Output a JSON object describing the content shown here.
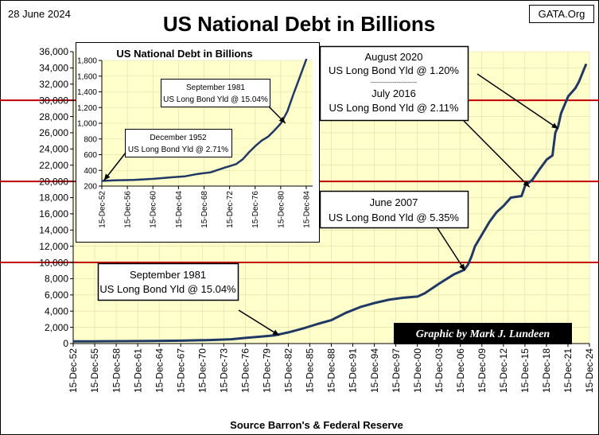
{
  "header": {
    "date": "28 June 2024",
    "site": "GATA.Org",
    "title": "US National Debt in Billions"
  },
  "footer": {
    "source": "Source Barron's & Federal Reserve",
    "credit": "Graphic by Mark J. Lundeen"
  },
  "colors": {
    "line": "#1f3864",
    "plot_bg": "#ffffcc",
    "reference_line": "#c00000",
    "credit_bg": "#000000"
  },
  "chart_data": [
    {
      "type": "line",
      "title": "US National Debt in Billions",
      "ylim": [
        0,
        36000
      ],
      "yticks": [
        0,
        2000,
        4000,
        6000,
        8000,
        10000,
        12000,
        14000,
        16000,
        18000,
        20000,
        22000,
        24000,
        26000,
        28000,
        30000,
        32000,
        34000,
        36000
      ],
      "ytick_labels": [
        "0",
        "2,000",
        "4,000",
        "6,000",
        "8,000",
        "10,000",
        "12,000",
        "14,000",
        "16,000",
        "18,000",
        "20,000",
        "22,000",
        "24,000",
        "26,000",
        "28,000",
        "30,000",
        "32,000",
        "34,000",
        "36,000"
      ],
      "xlim": [
        1952.96,
        2024.96
      ],
      "xtick_years": [
        1952.96,
        1955.96,
        1958.96,
        1961.96,
        1964.96,
        1967.96,
        1970.96,
        1973.96,
        1976.96,
        1979.96,
        1982.96,
        1985.96,
        1988.96,
        1991.96,
        1994.96,
        1997.96,
        2000.96,
        2003.96,
        2006.96,
        2009.96,
        2012.96,
        2015.96,
        2018.96,
        2021.96,
        2024.96
      ],
      "xtick_labels": [
        "15-Dec-52",
        "15-Dec-55",
        "15-Dec-58",
        "15-Dec-61",
        "15-Dec-64",
        "15-Dec-67",
        "15-Dec-70",
        "15-Dec-73",
        "15-Dec-76",
        "15-Dec-79",
        "15-Dec-82",
        "15-Dec-85",
        "15-Dec-88",
        "15-Dec-91",
        "15-Dec-94",
        "15-Dec-97",
        "15-Dec-00",
        "15-Dec-03",
        "15-Dec-06",
        "15-Dec-09",
        "15-Dec-12",
        "15-Dec-15",
        "15-Dec-18",
        "15-Dec-21",
        "15-Dec-24"
      ],
      "reference_lines": [
        10000,
        20000,
        30000
      ],
      "series": [
        {
          "name": "US National Debt",
          "x": [
            1952.96,
            1956,
            1960,
            1964,
            1968,
            1972,
            1975,
            1977,
            1979,
            1981,
            1983,
            1985,
            1987,
            1989,
            1991,
            1993,
            1995,
            1997,
            1999,
            2001,
            2002,
            2004,
            2006,
            2007.5,
            2008,
            2008.5,
            2009,
            2010,
            2011,
            2012,
            2013,
            2014,
            2015.5,
            2016,
            2017,
            2018,
            2019,
            2019.8,
            2020.2,
            2020.6,
            2021,
            2022,
            2023,
            2023.5,
            2024.5
          ],
          "y": [
            260,
            272,
            290,
            316,
            350,
            430,
            530,
            700,
            840,
            1000,
            1380,
            1850,
            2400,
            2900,
            3800,
            4500,
            5000,
            5400,
            5650,
            5800,
            6200,
            7400,
            8500,
            9100,
            9700,
            10700,
            12000,
            13500,
            15000,
            16200,
            17000,
            18000,
            18200,
            19500,
            20200,
            21500,
            22700,
            23200,
            26000,
            26800,
            28400,
            30500,
            31500,
            32300,
            34500
          ]
        }
      ],
      "annotations": [
        {
          "lines": [
            "September 1981",
            "US Long Bond Yld @ 15.04%"
          ],
          "x": 1981.7,
          "y": 1000
        },
        {
          "lines": [
            "June 2007",
            "US Long Bond Yld @ 5.35%"
          ],
          "x": 2007.6,
          "y": 9000
        },
        {
          "lines": [
            "August 2020",
            "US Long Bond Yld @ 1.20%",
            "-------------------------",
            "July 2016",
            "US Long Bond Yld @ 2.11%"
          ],
          "targets": [
            {
              "x": 2020.6,
              "y": 26500
            },
            {
              "x": 2016.6,
              "y": 19300
            }
          ]
        }
      ]
    },
    {
      "type": "line",
      "title": "US National Debt in Billions",
      "ylim": [
        200,
        1800
      ],
      "yticks": [
        200,
        400,
        600,
        800,
        1000,
        1200,
        1400,
        1600,
        1800
      ],
      "ytick_labels": [
        "200",
        "400",
        "600",
        "800",
        "1,000",
        "1,200",
        "1,400",
        "1,600",
        "1,800"
      ],
      "xlim": [
        1952.96,
        1985.96
      ],
      "xtick_years": [
        1952.96,
        1956.96,
        1960.96,
        1964.96,
        1968.96,
        1972.96,
        1976.96,
        1980.96,
        1984.96
      ],
      "xtick_labels": [
        "15-Dec-52",
        "15-Dec-56",
        "15-Dec-60",
        "15-Dec-64",
        "15-Dec-68",
        "15-Dec-72",
        "15-Dec-76",
        "15-Dec-80",
        "15-Dec-84"
      ],
      "series": [
        {
          "name": "US National Debt",
          "x": [
            1952.96,
            1955,
            1958,
            1961,
            1964,
            1966,
            1968,
            1970,
            1972,
            1974,
            1975,
            1976,
            1977,
            1978,
            1979,
            1980,
            1981,
            1982,
            1983,
            1984,
            1985
          ],
          "y": [
            266,
            274,
            278,
            292,
            312,
            325,
            355,
            375,
            430,
            480,
            540,
            630,
            710,
            780,
            830,
            910,
            1000,
            1150,
            1380,
            1600,
            1820
          ]
        }
      ],
      "annotations": [
        {
          "lines": [
            "September 1981",
            "US Long Bond Yld @ 15.04%"
          ],
          "x": 1981.7,
          "y": 1000
        },
        {
          "lines": [
            "December 1952",
            "US Long Bond Yld @ 2.71%"
          ],
          "x": 1953.3,
          "y": 272
        }
      ]
    }
  ]
}
